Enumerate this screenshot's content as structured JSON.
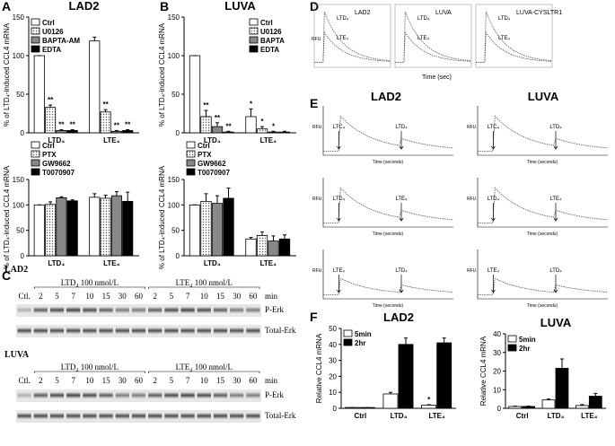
{
  "chart_data": [
    {
      "type": "bar",
      "title": "LAD2",
      "ylabel": "% of LTD₄-induced CCL4 mRNA",
      "categories": [
        "LTD₄",
        "LTE₄"
      ],
      "series": [
        {
          "name": "Ctrl",
          "color": "#ffffff",
          "values": [
            100,
            119
          ],
          "errors": [
            0,
            5
          ],
          "marks": [
            null,
            null
          ]
        },
        {
          "name": "U0126",
          "color": "#ffffff",
          "pattern": "dots",
          "values": [
            33,
            27
          ],
          "errors": [
            3,
            3
          ],
          "marks": [
            "**",
            "**"
          ]
        },
        {
          "name": "BAPTA-AM",
          "color": "#888888",
          "values": [
            3,
            2
          ],
          "errors": [
            1,
            1
          ],
          "marks": [
            "**",
            "**"
          ]
        },
        {
          "name": "EDTA",
          "color": "#000000",
          "values": [
            3,
            3
          ],
          "errors": [
            1,
            1
          ],
          "marks": [
            "**",
            "**"
          ]
        }
      ],
      "ylim": [
        0,
        150
      ],
      "yticks": [
        0,
        50,
        100,
        150
      ],
      "legend": "upper left"
    },
    {
      "type": "bar",
      "ylabel": "% of LTD₄-induced CCL4 mRNA",
      "categories": [
        "LTD₄",
        "LTE₄"
      ],
      "series": [
        {
          "name": "Ctrl",
          "color": "#ffffff",
          "values": [
            100,
            115
          ],
          "errors": [
            0,
            7
          ]
        },
        {
          "name": "PTX",
          "color": "#ffffff",
          "pattern": "dots",
          "values": [
            101,
            113
          ],
          "errors": [
            5,
            6
          ]
        },
        {
          "name": "GW9662",
          "color": "#888888",
          "values": [
            114,
            118
          ],
          "errors": [
            2,
            8
          ]
        },
        {
          "name": "T0070907",
          "color": "#000000",
          "values": [
            108,
            107
          ],
          "errors": [
            2,
            18
          ]
        }
      ],
      "ylim": [
        0,
        150
      ],
      "yticks": [
        0,
        50,
        100,
        150
      ],
      "legend": "above"
    },
    {
      "type": "bar",
      "title": "LUVA",
      "ylabel": "% of LTD₄-induced CCL4 mRNA",
      "categories": [
        "LTD₄",
        "LTE₄"
      ],
      "series": [
        {
          "name": "Ctrl",
          "color": "#ffffff",
          "values": [
            100,
            21
          ],
          "errors": [
            0,
            10
          ],
          "marks": [
            null,
            "*"
          ]
        },
        {
          "name": "U0126",
          "color": "#ffffff",
          "pattern": "dots",
          "values": [
            21,
            5
          ],
          "errors": [
            8,
            3
          ],
          "marks": [
            "**",
            "*"
          ]
        },
        {
          "name": "BAPTA",
          "color": "#888888",
          "values": [
            8,
            1
          ],
          "errors": [
            5,
            1
          ],
          "marks": [
            "**",
            "*"
          ]
        },
        {
          "name": "EDTA",
          "color": "#000000",
          "values": [
            1,
            1
          ],
          "errors": [
            1,
            1
          ],
          "marks": [
            "**",
            null
          ]
        }
      ],
      "ylim": [
        0,
        150
      ],
      "yticks": [
        0,
        50,
        100,
        150
      ],
      "legend": "upper right"
    },
    {
      "type": "bar",
      "ylabel": "% of LTD₄-induced CCL4 mRNA",
      "categories": [
        "LTD₄",
        "LTE₄"
      ],
      "series": [
        {
          "name": "Ctrl",
          "color": "#ffffff",
          "values": [
            100,
            33
          ],
          "errors": [
            0,
            3
          ]
        },
        {
          "name": "PTX",
          "color": "#ffffff",
          "pattern": "dots",
          "values": [
            107,
            40
          ],
          "errors": [
            15,
            7
          ]
        },
        {
          "name": "GW9662",
          "color": "#888888",
          "values": [
            103,
            29
          ],
          "errors": [
            15,
            10
          ]
        },
        {
          "name": "T0070907",
          "color": "#000000",
          "values": [
            113,
            33
          ],
          "errors": [
            20,
            8
          ]
        }
      ],
      "ylim": [
        0,
        150
      ],
      "yticks": [
        0,
        50,
        100,
        150
      ],
      "legend": "above"
    },
    {
      "type": "bar",
      "title": "LAD2",
      "ylabel": "Relative CCL4 mRNA",
      "categories": [
        "Ctrl",
        "LTD₄",
        "LTE₄"
      ],
      "series": [
        {
          "name": "5min",
          "color": "#ffffff",
          "values": [
            0.5,
            9,
            2
          ],
          "errors": [
            0,
            1,
            0.3
          ],
          "marks": [
            null,
            null,
            "*"
          ]
        },
        {
          "name": "2hr",
          "color": "#000000",
          "values": [
            0.5,
            40,
            41
          ],
          "errors": [
            0,
            4,
            3
          ]
        }
      ],
      "ylim": [
        0,
        50
      ],
      "yticks": [
        0,
        10,
        20,
        30,
        40,
        50
      ],
      "legend": "upper left"
    },
    {
      "type": "bar",
      "title": "LUVA",
      "ylabel": "Relative CCL4 mRNA",
      "categories": [
        "Ctrl",
        "LTD₄",
        "LTE₄"
      ],
      "series": [
        {
          "name": "5min",
          "color": "#ffffff",
          "values": [
            1,
            4.5,
            1.5
          ],
          "errors": [
            0.2,
            0.5,
            0.5
          ]
        },
        {
          "name": "2hr",
          "color": "#000000",
          "values": [
            1,
            21.5,
            6.5
          ],
          "errors": [
            0.2,
            5,
            1.5
          ]
        }
      ],
      "ylim": [
        0,
        40
      ],
      "yticks": [
        0,
        10,
        20,
        30,
        40
      ],
      "legend": "upper left"
    }
  ],
  "letters": [
    "A",
    "B",
    "C",
    "D",
    "E",
    "F"
  ],
  "blots": {
    "cells": [
      "LAD2",
      "LUVA"
    ],
    "treatments": [
      "LTD₄ 100 nmol/L",
      "LTE₄ 100 nmol/L"
    ],
    "control": "Ctl.",
    "times": [
      "2",
      "5",
      "7",
      "10",
      "15",
      "30",
      "60"
    ],
    "unit": "min",
    "rows": [
      "P-Erk",
      "Total-Erk"
    ]
  },
  "traces_d": {
    "titles": [
      "LAD2",
      "LUVA",
      "LUVA-CYSLTR1"
    ],
    "ylabel": "RFU",
    "xlabel": "Time (sec)",
    "labels": [
      "LTD₄",
      "LTE₄"
    ]
  },
  "traces_e": {
    "titles": [
      "LAD2",
      "LUVA"
    ],
    "ylabel": "RFU",
    "xlabel": "Time (seconds)",
    "rows": [
      [
        "LTC₄",
        "LTD₄"
      ],
      [
        "LTD₄",
        "LTE₄"
      ],
      [
        "LTE₄",
        "LTD₄"
      ]
    ]
  }
}
